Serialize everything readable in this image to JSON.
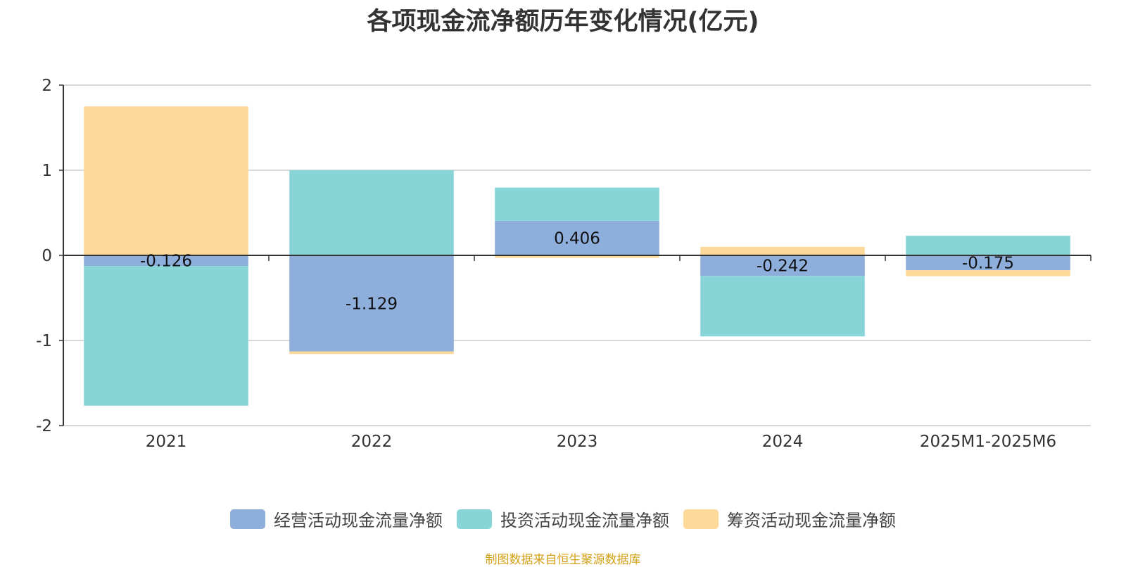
{
  "colors": {
    "operating": "#8eaedc",
    "investing": "#88d5d8",
    "financing": "#fdd99a",
    "axis": "#333333",
    "grid": "#cccccc",
    "text": "#333333",
    "source": "#d4a017"
  },
  "source_note": "制图数据来自恒生聚源数据库",
  "chart_data": {
    "type": "bar",
    "stacked": true,
    "title": "各项现金流净额历年变化情况(亿元)",
    "xlabel": "",
    "ylabel": "",
    "categories": [
      "2021",
      "2022",
      "2023",
      "2024",
      "2025M1-2025M6"
    ],
    "ylim": [
      -2,
      2
    ],
    "yticks": [
      2,
      1,
      0,
      -1,
      -2
    ],
    "grid": true,
    "legend_position": "bottom",
    "series": [
      {
        "name": "经营活动现金流量净额",
        "color_key": "operating",
        "values": [
          -0.126,
          -1.129,
          0.406,
          -0.242,
          -0.175
        ],
        "labels": [
          "-0.126",
          "-1.129",
          "0.406",
          "-0.242",
          "-0.175"
        ]
      },
      {
        "name": "投资活动现金流量净额",
        "color_key": "investing",
        "values": [
          -1.64,
          1.0,
          0.39,
          -0.71,
          0.23
        ]
      },
      {
        "name": "筹资活动现金流量净额",
        "color_key": "financing",
        "values": [
          1.75,
          -0.03,
          -0.03,
          0.1,
          -0.07
        ]
      }
    ]
  }
}
